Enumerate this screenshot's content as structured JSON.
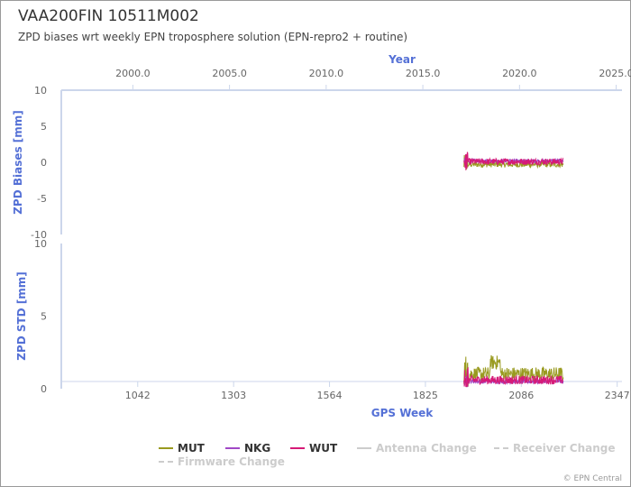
{
  "title": "VAA200FIN 10511M002",
  "subtitle": "ZPD biases wrt weekly EPN troposphere solution (EPN-repro2 + routine)",
  "credit": "© EPN Central",
  "colors": {
    "axis_label": "#5470d6",
    "tick": "#666666",
    "MUT": "#999a1f",
    "NKG": "#a048c6",
    "WUT": "#d61a77",
    "event": "#cccccc"
  },
  "chart_data": [
    {
      "type": "line",
      "name": "ZPD Biases",
      "ylabel": "ZPD Biases [mm]",
      "ylim": [
        -10,
        10
      ],
      "yticks": [
        -10,
        -5,
        0,
        5,
        10
      ],
      "xlabel_top": "Year",
      "xlim_year": [
        1996.3,
        2025.3
      ],
      "xticks_year": [
        "2000.0",
        "2005.0",
        "2010.0",
        "2015.0",
        "2020.0",
        "2025.0"
      ],
      "data_range_week": [
        1930,
        2200
      ],
      "series": [
        {
          "name": "MUT",
          "level": -0.3,
          "noise": 0.4
        },
        {
          "name": "NKG",
          "level": 0.2,
          "noise": 0.25
        },
        {
          "name": "WUT",
          "level": 0.1,
          "noise": 0.45
        }
      ]
    },
    {
      "type": "line",
      "name": "ZPD STD",
      "ylabel": "ZPD STD [mm]",
      "ylim": [
        0,
        10
      ],
      "yticks": [
        0,
        5,
        10
      ],
      "xlabel": "GPS Week",
      "xlim_week": [
        834,
        2360
      ],
      "xticks_week": [
        "1042",
        "1303",
        "1564",
        "1825",
        "2086",
        "2347"
      ],
      "data_range_week": [
        1930,
        2200
      ],
      "series": [
        {
          "name": "MUT",
          "level": 1.0,
          "noise": 0.5
        },
        {
          "name": "NKG",
          "level": 0.5,
          "noise": 0.15
        },
        {
          "name": "WUT",
          "level": 0.6,
          "noise": 0.3
        }
      ]
    }
  ],
  "legend": {
    "items": [
      {
        "label": "MUT",
        "color": "#999a1f",
        "style": "solid"
      },
      {
        "label": "NKG",
        "color": "#a048c6",
        "style": "solid"
      },
      {
        "label": "WUT",
        "color": "#d61a77",
        "style": "solid"
      },
      {
        "label": "Antenna Change",
        "color": "#cccccc",
        "style": "solid"
      },
      {
        "label": "Receiver Change",
        "color": "#cccccc",
        "style": "dashed"
      },
      {
        "label": "Firmware Change",
        "color": "#cccccc",
        "style": "dashed"
      }
    ]
  }
}
